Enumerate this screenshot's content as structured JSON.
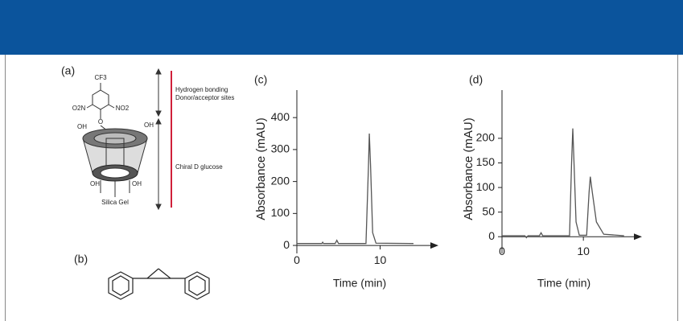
{
  "chart_data": [
    {
      "type": "line",
      "label": "(c)",
      "x_label": "Time (min)",
      "y_label": "Absorbance (mAU)",
      "x": [
        0,
        3,
        3.1,
        3.2,
        4.6,
        4.8,
        5.0,
        8.3,
        8.6,
        8.7,
        8.85,
        9.1,
        9.5,
        14
      ],
      "series": [
        {
          "color": "#555555",
          "values": [
            6,
            6,
            10,
            6,
            6,
            16,
            6,
            6,
            250,
            350,
            250,
            40,
            7,
            6
          ]
        }
      ],
      "xlim": [
        0,
        17
      ],
      "ylim": [
        -25,
        486
      ],
      "xticks": [
        0,
        10
      ],
      "yticks": [
        0,
        100,
        200,
        300,
        400
      ],
      "grid": false
    },
    {
      "type": "line",
      "label": "(d)",
      "x_label": "Time (min)",
      "y_label": "Absorbance (mAU)",
      "x": [
        0,
        2.8,
        3,
        3.2,
        4.6,
        4.8,
        5,
        8.3,
        8.55,
        8.7,
        8.85,
        9.1,
        9.5,
        10.4,
        10.7,
        10.85,
        11.1,
        11.6,
        12.5,
        15
      ],
      "series": [
        {
          "color": "#555555",
          "values": [
            2,
            2,
            -2,
            2,
            2,
            8,
            2,
            2,
            150,
            220,
            150,
            30,
            3,
            3,
            90,
            122,
            90,
            30,
            5,
            2
          ]
        }
      ],
      "xlim": [
        0,
        17.2
      ],
      "ylim": [
        -34,
        298
      ],
      "xticks": [
        0,
        10
      ],
      "yticks": [
        0,
        50,
        100,
        150,
        200
      ],
      "grid": false
    }
  ],
  "structure": {
    "a": {
      "label": "(a)",
      "groups": [
        "CF3",
        "O2N",
        "NO2",
        "O",
        "OH",
        "OH",
        "OH",
        "OH"
      ],
      "support": "Silica Gel",
      "annotations": [
        "Hydrogen bonding",
        "Donor/acceptor sites",
        "Chiral D glucose"
      ]
    },
    "b": {
      "label": "(b)"
    }
  }
}
